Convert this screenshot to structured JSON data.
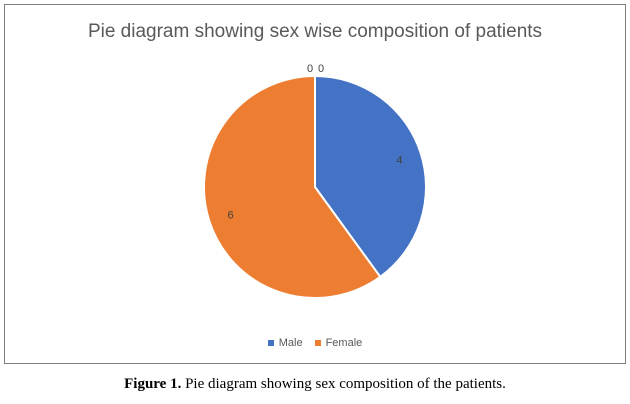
{
  "chart_data": {
    "type": "pie",
    "title": "Pie diagram showing sex wise composition of patients",
    "categories": [
      "Male",
      "Female"
    ],
    "values": [
      4,
      6
    ],
    "colors": [
      "#4472C4",
      "#ED7D31"
    ],
    "data_labels": [
      "4",
      "6"
    ],
    "zero_labels": [
      "0",
      "0"
    ],
    "legend_position": "bottom"
  },
  "caption": {
    "label": "Figure 1.",
    "text": " Pie diagram showing sex composition of the patients."
  }
}
